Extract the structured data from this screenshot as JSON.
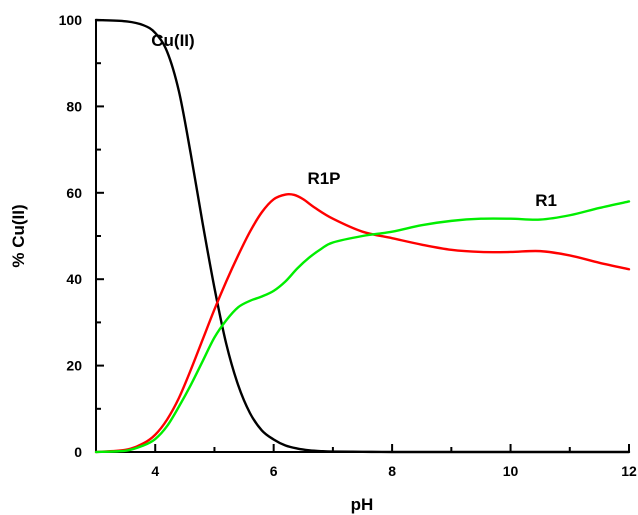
{
  "chart_data": {
    "type": "line",
    "xlabel": "pH",
    "ylabel": "% Cu(II)",
    "xlim": [
      3,
      12
    ],
    "ylim": [
      0,
      100
    ],
    "x_ticks": [
      4,
      6,
      8,
      10,
      12
    ],
    "y_ticks": [
      0,
      20,
      40,
      60,
      80,
      100
    ],
    "grid": false,
    "legend": "none",
    "series": [
      {
        "name": "Cu(II)",
        "color": "#000000",
        "label_at": [
          4.3,
          94
        ],
        "x": [
          3,
          3.5,
          3.8,
          4.0,
          4.2,
          4.4,
          4.6,
          4.8,
          5.0,
          5.2,
          5.4,
          5.6,
          5.8,
          6.0,
          6.2,
          6.4,
          6.6,
          6.8,
          7.0,
          7.5,
          8.0,
          9.0,
          10.0,
          12.0
        ],
        "values": [
          100,
          99.7,
          98.8,
          97,
          92.7,
          83.5,
          69,
          53,
          38,
          25,
          15.5,
          9,
          5,
          2.9,
          1.5,
          0.8,
          0.4,
          0.2,
          0.1,
          0.05,
          0,
          0,
          0,
          0
        ]
      },
      {
        "name": "R1P",
        "color": "#ff0000",
        "label_at": [
          6.85,
          62
        ],
        "x": [
          3,
          3.5,
          3.8,
          4.0,
          4.2,
          4.4,
          4.6,
          4.8,
          5.0,
          5.2,
          5.4,
          5.6,
          5.8,
          6.0,
          6.2,
          6.35,
          6.5,
          6.7,
          7.0,
          7.5,
          8.0,
          8.5,
          9.0,
          9.5,
          10.0,
          10.5,
          11.0,
          11.5,
          12.0
        ],
        "values": [
          0,
          0.5,
          2,
          4,
          7.5,
          12.5,
          19,
          26,
          33,
          39.5,
          45.5,
          51,
          55.5,
          58.5,
          59.6,
          59.5,
          58.5,
          56.5,
          54,
          51,
          49.5,
          48,
          46.8,
          46.3,
          46.3,
          46.5,
          45.5,
          43.8,
          42.3
        ]
      },
      {
        "name": "R1",
        "color": "#00ee00",
        "label_at": [
          10.6,
          57
        ],
        "x": [
          3,
          3.5,
          3.8,
          4.0,
          4.2,
          4.4,
          4.6,
          4.8,
          5.0,
          5.2,
          5.4,
          5.6,
          5.8,
          6.0,
          6.2,
          6.4,
          6.6,
          6.8,
          7.0,
          7.5,
          8.0,
          8.5,
          9.0,
          9.5,
          10.0,
          10.5,
          11.0,
          11.5,
          12.0
        ],
        "values": [
          0,
          0.3,
          1.5,
          3,
          6,
          10.5,
          15.5,
          21,
          26.5,
          30.5,
          33.5,
          35,
          36,
          37.3,
          39.5,
          42.5,
          45,
          47,
          48.5,
          50,
          51,
          52.5,
          53.5,
          54,
          54,
          53.8,
          54.8,
          56.5,
          58
        ]
      }
    ]
  }
}
